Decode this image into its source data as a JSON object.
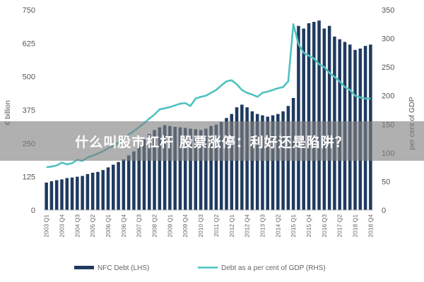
{
  "caption": "什么叫股市杠杆 股票涨停：利好还是陷阱？",
  "chart_data": {
    "type": "bar+line",
    "xlabel": "",
    "ylabel_left": "€ billion",
    "ylabel_right": "per cent of GDP",
    "ylim_left": [
      0,
      750
    ],
    "ylim_right": [
      0,
      350
    ],
    "yticks_left": [
      0,
      125,
      250,
      375,
      500,
      625,
      750
    ],
    "yticks_right": [
      0,
      50,
      100,
      150,
      200,
      250,
      300,
      350
    ],
    "grid": false,
    "legend_position": "bottom",
    "categories": [
      "2003 Q1",
      "2003 Q2",
      "2003 Q3",
      "2003 Q4",
      "2004 Q1",
      "2004 Q2",
      "2004 Q3",
      "2004 Q4",
      "2005 Q1",
      "2005 Q2",
      "2005 Q3",
      "2005 Q4",
      "2006 Q1",
      "2006 Q2",
      "2006 Q3",
      "2006 Q4",
      "2007 Q1",
      "2007 Q2",
      "2007 Q3",
      "2007 Q4",
      "2008 Q1",
      "2008 Q2",
      "2008 Q3",
      "2008 Q4",
      "2009 Q1",
      "2009 Q2",
      "2009 Q3",
      "2009 Q4",
      "2010 Q1",
      "2010 Q2",
      "2010 Q3",
      "2010 Q4",
      "2011 Q1",
      "2011 Q2",
      "2011 Q3",
      "2011 Q4",
      "2012 Q1",
      "2012 Q2",
      "2012 Q3",
      "2012 Q4",
      "2013 Q1",
      "2013 Q2",
      "2013 Q3",
      "2013 Q4",
      "2014 Q1",
      "2014 Q2",
      "2014 Q3",
      "2014 Q4",
      "2015 Q1",
      "2015 Q2",
      "2015 Q3",
      "2015 Q4",
      "2016 Q1",
      "2016 Q2",
      "2016 Q3",
      "2016 Q4",
      "2017 Q1",
      "2017 Q2",
      "2017 Q3",
      "2017 Q4",
      "2018 Q1",
      "2018 Q2",
      "2018 Q3",
      "2018 Q4"
    ],
    "x_tick_labels": [
      "2003 Q1",
      "2003 Q4",
      "2004 Q3",
      "2005 Q2",
      "2006 Q1",
      "2006 Q4",
      "2007 Q3",
      "2008 Q2",
      "2009 Q1",
      "2009 Q4",
      "2010 Q3",
      "2011 Q2",
      "2012 Q1",
      "2012 Q4",
      "2013 Q3",
      "2014 Q2",
      "2015 Q1",
      "2015 Q4",
      "2016 Q3",
      "2017 Q2",
      "2018 Q1",
      "2018 Q4"
    ],
    "series": [
      {
        "name": "NFC Debt (LHS)",
        "type": "bar",
        "axis": "left",
        "color": "#1f3a5f",
        "values": [
          103,
          108,
          112,
          115,
          120,
          122,
          125,
          128,
          135,
          140,
          143,
          150,
          160,
          170,
          180,
          190,
          205,
          220,
          245,
          265,
          285,
          300,
          310,
          318,
          315,
          312,
          310,
          308,
          305,
          303,
          300,
          305,
          315,
          320,
          330,
          345,
          360,
          385,
          395,
          385,
          370,
          360,
          355,
          350,
          355,
          360,
          370,
          390,
          420,
          690,
          680,
          700,
          705,
          710,
          680,
          690,
          650,
          640,
          630,
          620,
          600,
          605,
          615,
          620
        ]
      },
      {
        "name": "Debt as a per cent of GDP (RHS)",
        "type": "line",
        "axis": "right",
        "color": "#4fc1c0",
        "values": [
          75,
          76,
          78,
          83,
          80,
          82,
          88,
          86,
          92,
          95,
          99,
          103,
          108,
          112,
          118,
          125,
          132,
          138,
          145,
          152,
          160,
          167,
          176,
          178,
          180,
          183,
          186,
          187,
          182,
          195,
          198,
          200,
          205,
          210,
          218,
          225,
          227,
          220,
          210,
          205,
          202,
          198,
          205,
          207,
          210,
          213,
          215,
          225,
          325,
          290,
          275,
          270,
          265,
          255,
          250,
          240,
          233,
          225,
          215,
          210,
          200,
          197,
          195,
          195
        ]
      }
    ]
  }
}
